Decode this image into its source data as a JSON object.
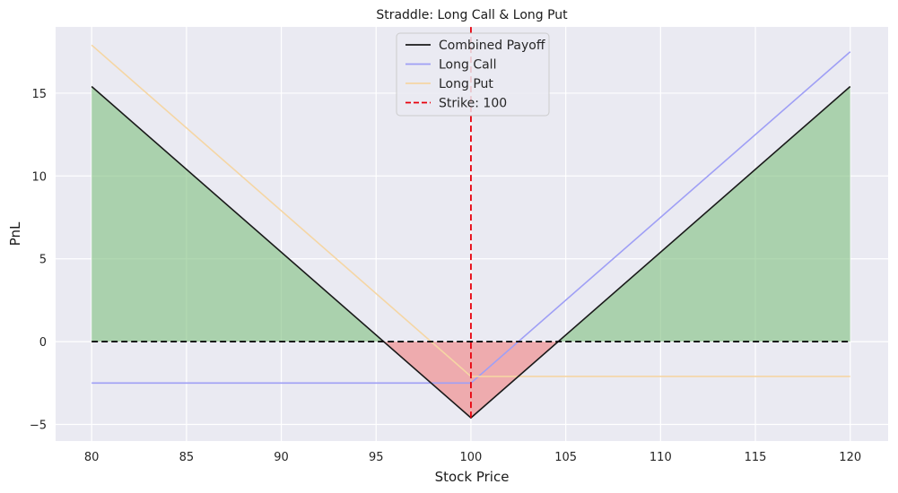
{
  "chart_data": {
    "type": "line",
    "title": "Straddle: Long Call & Long Put",
    "xlabel": "Stock Price",
    "ylabel": "PnL",
    "xlim": [
      78.1,
      122
    ],
    "ylim": [
      -6,
      19
    ],
    "xticks": [
      80,
      85,
      90,
      95,
      100,
      105,
      110,
      115,
      120
    ],
    "yticks": [
      -5,
      0,
      5,
      10,
      15
    ],
    "grid": true,
    "legend_position": "top-center",
    "strike": 100,
    "series": [
      {
        "name": "Combined Payoff",
        "color": "#1a1a1a",
        "style": "solid",
        "x": [
          80,
          100,
          120
        ],
        "y": [
          15.4,
          -4.6,
          15.4
        ]
      },
      {
        "name": "Long Call",
        "color": "#9f9ff5",
        "style": "solid",
        "x": [
          80,
          100,
          120
        ],
        "y": [
          -2.5,
          -2.5,
          17.5
        ]
      },
      {
        "name": "Long Put",
        "color": "#f5d6a4",
        "style": "solid",
        "x": [
          80,
          100,
          120
        ],
        "y": [
          17.9,
          -2.1,
          -2.1
        ]
      },
      {
        "name": "Strike: 100",
        "color": "#e8000b",
        "style": "dashed",
        "x": [
          100,
          100
        ],
        "y": [
          -4.6,
          19
        ]
      }
    ],
    "zero_line": {
      "color": "#000000",
      "style": "dashed",
      "y": 0,
      "x": [
        80,
        120
      ]
    },
    "fills": [
      {
        "kind": "profit",
        "color": "#7fbf7f",
        "x": [
          80,
          95.4
        ],
        "y": [
          15.4,
          0
        ]
      },
      {
        "kind": "loss",
        "color": "#f08080",
        "x": [
          95.4,
          100,
          104.6
        ],
        "y": [
          0,
          -4.6,
          0
        ]
      },
      {
        "kind": "profit",
        "color": "#7fbf7f",
        "x": [
          104.6,
          120
        ],
        "y": [
          0,
          15.4
        ]
      }
    ]
  }
}
